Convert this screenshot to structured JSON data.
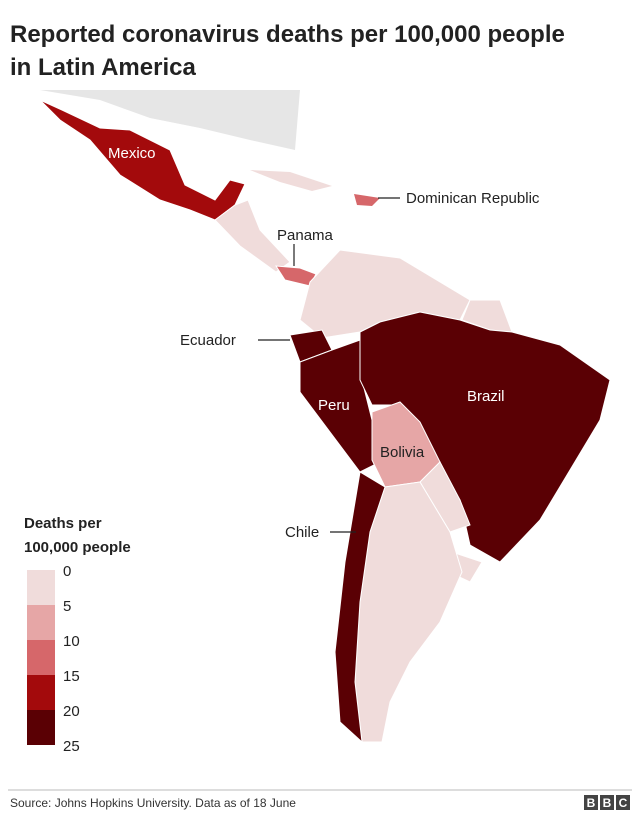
{
  "header": {
    "title_lines": [
      "Reported coronavirus deaths per 100,000 people",
      "in Latin America"
    ]
  },
  "map": {
    "labels": [
      "Mexico",
      "Dominican Republic",
      "Panama",
      "Ecuador",
      "Peru",
      "Brazil",
      "Bolivia",
      "Chile"
    ]
  },
  "legend": {
    "title_lines": [
      "Deaths per",
      "100,000 people"
    ],
    "ticks": [
      0,
      5,
      10,
      15,
      20,
      25
    ],
    "colors": [
      "#f0dcdb",
      "#e6a6a6",
      "#d6676a",
      "#a30a0c",
      "#5a0004"
    ]
  },
  "footer": {
    "source": "Source: Johns Hopkins University. Data as of 18 June",
    "logo": [
      "B",
      "B",
      "C"
    ]
  }
}
